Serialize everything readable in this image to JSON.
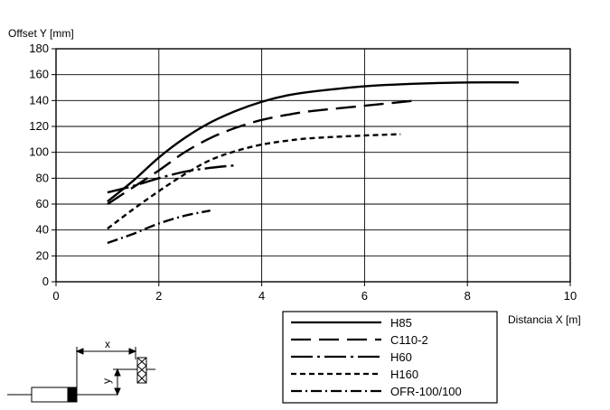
{
  "chart_data": {
    "type": "line",
    "title": "",
    "xlabel": "Distancia X [m]",
    "ylabel": "Offset Y [mm]",
    "xlim": [
      0,
      10
    ],
    "ylim": [
      0,
      180
    ],
    "x_ticks": [
      0,
      2,
      4,
      6,
      8,
      10
    ],
    "y_ticks": [
      0,
      20,
      40,
      60,
      80,
      100,
      120,
      140,
      160,
      180
    ],
    "grid": true,
    "legend_position": "bottom-right",
    "series": [
      {
        "name": "H85",
        "dash": "solid",
        "points": [
          [
            1,
            62
          ],
          [
            1.5,
            78
          ],
          [
            2,
            96
          ],
          [
            2.5,
            111
          ],
          [
            3,
            123
          ],
          [
            3.5,
            132
          ],
          [
            4,
            139
          ],
          [
            4.5,
            144
          ],
          [
            5,
            147
          ],
          [
            6,
            151
          ],
          [
            7,
            153
          ],
          [
            8,
            154
          ],
          [
            9,
            154
          ]
        ]
      },
      {
        "name": "C110-2",
        "dash": "long-dash",
        "points": [
          [
            1,
            60
          ],
          [
            1.5,
            73
          ],
          [
            2,
            86
          ],
          [
            2.5,
            100
          ],
          [
            3,
            111
          ],
          [
            3.5,
            119
          ],
          [
            4,
            125
          ],
          [
            4.5,
            129
          ],
          [
            5,
            132
          ],
          [
            6,
            136
          ],
          [
            7,
            140
          ]
        ]
      },
      {
        "name": "H60",
        "dash": "dash-dot",
        "points": [
          [
            1,
            69
          ],
          [
            1.5,
            74
          ],
          [
            2,
            80
          ],
          [
            2.5,
            85
          ],
          [
            3,
            88
          ],
          [
            3.5,
            90
          ]
        ]
      },
      {
        "name": "H160",
        "dash": "short-dash",
        "points": [
          [
            1,
            41
          ],
          [
            1.5,
            56
          ],
          [
            2,
            70
          ],
          [
            2.5,
            83
          ],
          [
            3,
            94
          ],
          [
            3.5,
            101
          ],
          [
            4,
            106
          ],
          [
            4.5,
            109
          ],
          [
            5,
            111
          ],
          [
            6,
            113
          ],
          [
            6.7,
            114
          ]
        ]
      },
      {
        "name": "OFR-100/100",
        "dash": "dash-dot-dot",
        "points": [
          [
            1,
            30
          ],
          [
            1.5,
            37
          ],
          [
            2,
            45
          ],
          [
            2.5,
            51
          ],
          [
            3,
            55
          ]
        ]
      }
    ]
  },
  "diagram": {
    "x_label": "x",
    "y_label": "y"
  }
}
